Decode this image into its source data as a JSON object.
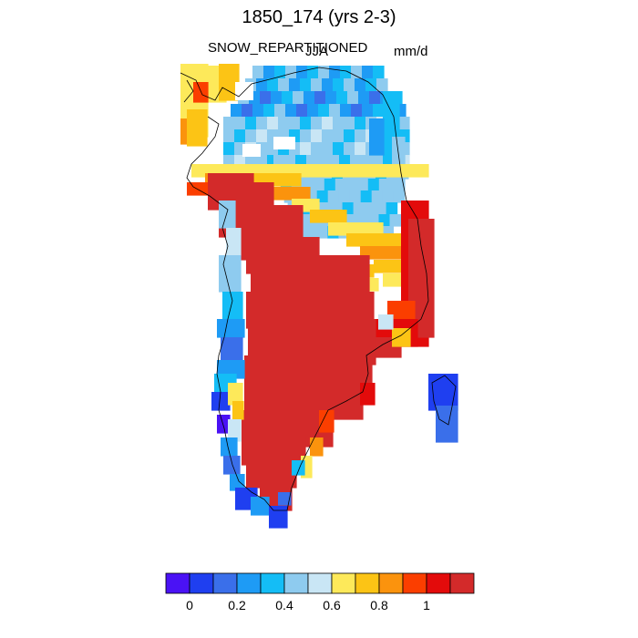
{
  "title": "1850_174 (yrs 2-3)",
  "variable": "SNOW_REPARTITIONED",
  "season": "JJA",
  "units": "mm/d",
  "colorbar": {
    "colors": [
      "#4a12f5",
      "#1f3ff0",
      "#3a6fea",
      "#1e9bf5",
      "#14bdf6",
      "#8ecbef",
      "#c9e6f5",
      "#fde95a",
      "#fcc415",
      "#fb930d",
      "#fb3e00",
      "#e30b0b",
      "#d32a2a"
    ],
    "tick_labels": [
      "0",
      "0.2",
      "0.4",
      "0.6",
      "0.8",
      "1"
    ],
    "tick_values": [
      0,
      0.2,
      0.4,
      0.6,
      0.8,
      1.0
    ],
    "levels": [
      -0.1,
      0,
      0.1,
      0.2,
      0.3,
      0.4,
      0.5,
      0.6,
      0.7,
      0.8,
      0.9,
      1.0,
      1.1,
      1.2
    ]
  },
  "chart_data": {
    "type": "heatmap",
    "description_region": "Greenland",
    "value_range": [
      0,
      1.2
    ],
    "palette_key": "colorbar.colors"
  }
}
